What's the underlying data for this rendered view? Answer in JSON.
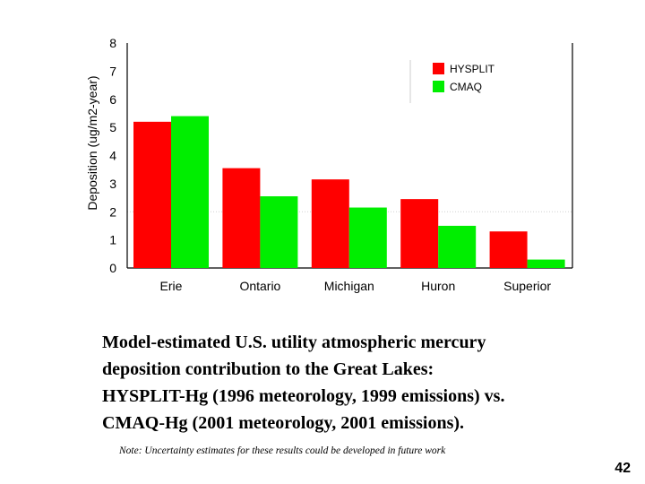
{
  "chart_data": {
    "type": "bar",
    "title": "",
    "xlabel": "",
    "ylabel": "Deposition (ug/m2-year)",
    "ylim": [
      0,
      8
    ],
    "yticks": [
      0,
      1,
      2,
      3,
      4,
      5,
      6,
      7,
      8
    ],
    "categories": [
      "Erie",
      "Ontario",
      "Michigan",
      "Huron",
      "Superior"
    ],
    "series": [
      {
        "name": "HYSPLIT",
        "color": "#ff0000",
        "values": [
          5.2,
          3.55,
          3.15,
          2.45,
          1.3
        ]
      },
      {
        "name": "CMAQ",
        "color": "#00ee00",
        "values": [
          5.4,
          2.55,
          2.15,
          1.5,
          0.3
        ]
      }
    ],
    "legend_position": "top-right",
    "grid": false
  },
  "caption": {
    "line1": "Model-estimated U.S. utility atmospheric mercury",
    "line2": "deposition contribution to the Great Lakes:",
    "line3": "HYSPLIT-Hg (1996 meteorology, 1999 emissions) vs.",
    "line4": "CMAQ-Hg (2001 meteorology, 2001 emissions)."
  },
  "note": "Note: Uncertainty estimates for these results could be developed in future work",
  "page_number": "42"
}
